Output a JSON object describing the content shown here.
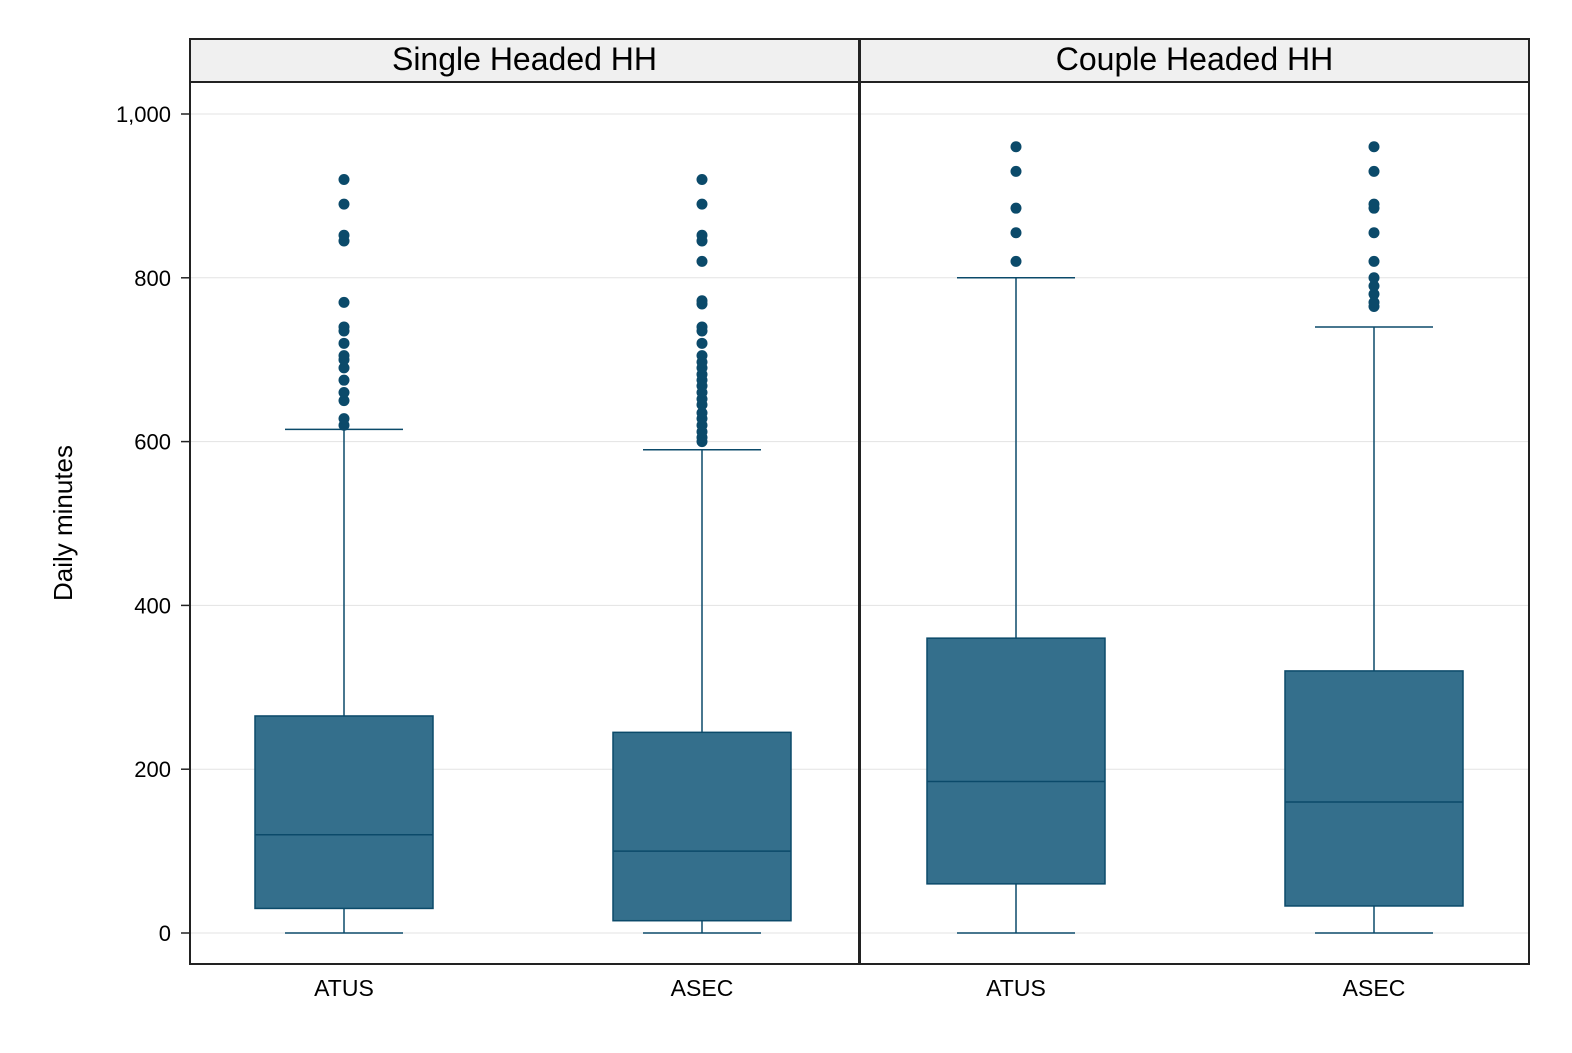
{
  "chart_data": {
    "type": "box",
    "ylabel": "Daily minutes",
    "ylim": [
      -35,
      1040
    ],
    "yticks": [
      0,
      200,
      400,
      600,
      800,
      1000
    ],
    "ytick_labels": [
      "0",
      "200",
      "400",
      "600",
      "800",
      "1,000"
    ],
    "grid": true,
    "colors": {
      "box_fill": "#346f8c",
      "box_stroke": "#0b4a6a",
      "outlier": "#0b4a6a",
      "grid": "#e3e3e3",
      "strip_bg": "#f0f0f0"
    },
    "panels": [
      {
        "title": "Single Headed HH",
        "groups": [
          {
            "label": "ATUS",
            "whisker_low": 0,
            "q1": 30,
            "median": 120,
            "q3": 265,
            "whisker_high": 615,
            "outliers": [
              620,
              628,
              650,
              660,
              675,
              690,
              700,
              705,
              720,
              735,
              740,
              770,
              845,
              852,
              890,
              920
            ]
          },
          {
            "label": "ASEC",
            "whisker_low": 0,
            "q1": 15,
            "median": 100,
            "q3": 245,
            "whisker_high": 590,
            "outliers": [
              600,
              605,
              612,
              620,
              628,
              635,
              645,
              652,
              660,
              668,
              675,
              682,
              690,
              697,
              705,
              720,
              735,
              740,
              768,
              772,
              820,
              845,
              852,
              890,
              920
            ]
          }
        ]
      },
      {
        "title": "Couple Headed HH",
        "groups": [
          {
            "label": "ATUS",
            "whisker_low": 0,
            "q1": 60,
            "median": 185,
            "q3": 360,
            "whisker_high": 800,
            "outliers": [
              820,
              855,
              885,
              930,
              960
            ]
          },
          {
            "label": "ASEC",
            "whisker_low": 0,
            "q1": 33,
            "median": 160,
            "q3": 320,
            "whisker_high": 740,
            "outliers": [
              765,
              770,
              780,
              790,
              800,
              820,
              855,
              885,
              890,
              930,
              960
            ]
          }
        ]
      }
    ]
  }
}
